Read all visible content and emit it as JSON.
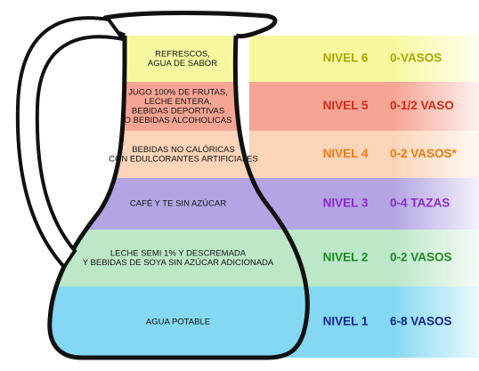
{
  "levels": [
    {
      "description": [
        "REFRESCOS,",
        "AGUA DE SABOR"
      ],
      "level": "NIVEL 6",
      "amount": "0-VASOS",
      "color": "#f8f8a0",
      "text_color": "#a8a800"
    },
    {
      "description": [
        "JUGO 100% DE FRUTAS,",
        "LECHE ENTERA,",
        "BEBIDAS DEPORTIVAS",
        "O BEBIDAS ALCOHOLICAS"
      ],
      "level": "NIVEL 5",
      "amount": "0-1/2 VASO",
      "color": "#f6a494",
      "text_color": "#d42a1a"
    },
    {
      "description": [
        "BEBIDAS NO CALÓRICAS",
        "CON EDULCORANTES ARTIFICIALES"
      ],
      "level": "NIVEL 4",
      "amount": "0-2 VASOS*",
      "color": "#fcd4b8",
      "text_color": "#f07a10"
    },
    {
      "description": [
        "CAFÉ Y TE SIN AZÚCAR"
      ],
      "level": "NIVEL 3",
      "amount": "0-4 TAZAS",
      "color": "#b4a4e4",
      "text_color": "#8a2cc8"
    },
    {
      "description": [
        "LECHE SEMI 1% Y DESCREMADA",
        "Y BEBIDAS DE SOYA SIN AZÚCAR ADICIONADA"
      ],
      "level": "NIVEL 2",
      "amount": "0-2 VASOS",
      "color": "#bce8c8",
      "text_color": "#1e8a24"
    },
    {
      "description": [
        "AGUA POTABLE"
      ],
      "level": "NIVEL 1",
      "amount": "6-8 VASOS",
      "color": "#84d8f2",
      "text_color": "#14268a"
    }
  ]
}
